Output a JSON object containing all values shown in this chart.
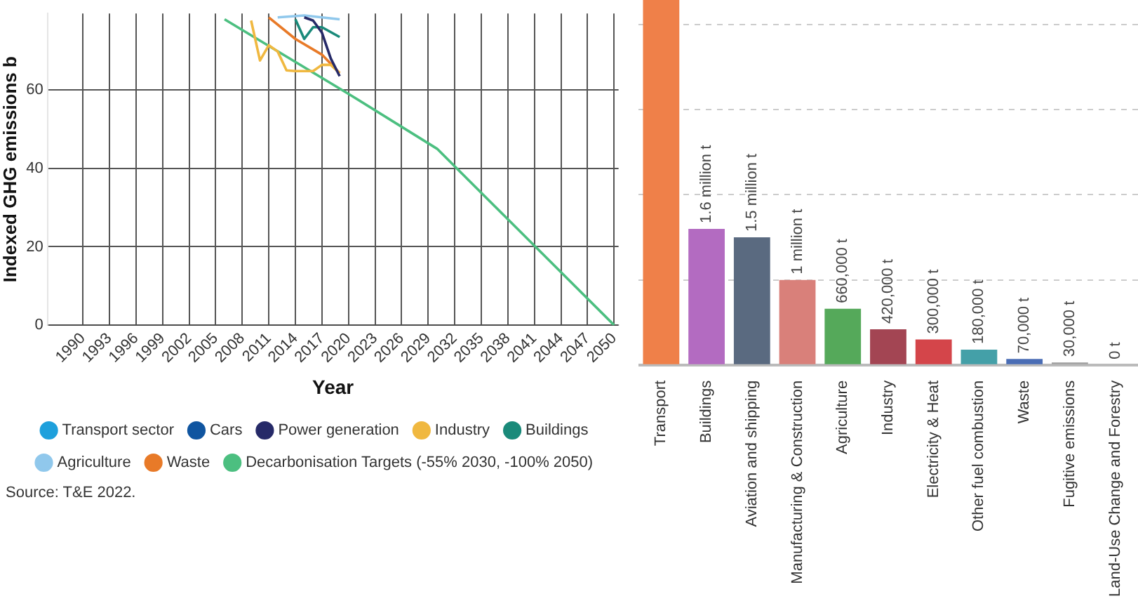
{
  "chart_data": [
    {
      "type": "line",
      "xlabel": "Year",
      "ylabel": "Indexed GHG emissions b",
      "xlim": [
        1986,
        2050.5
      ],
      "ylim": [
        0,
        79.5
      ],
      "xticks": [
        1990,
        1993,
        1996,
        1999,
        2002,
        2005,
        2008,
        2011,
        2014,
        2017,
        2020,
        2023,
        2026,
        2029,
        2032,
        2035,
        2038,
        2041,
        2044,
        2047,
        2050
      ],
      "yticks": [
        0,
        20,
        40,
        60
      ],
      "grid": true,
      "legend": "bottom",
      "marker": "none",
      "annotations": [
        "Source: T&E 2022."
      ],
      "series": [
        {
          "name": "Transport sector",
          "color": "#1ea0dc"
        },
        {
          "name": "Cars",
          "color": "#1055a0"
        },
        {
          "name": "Power generation",
          "color": "#262a68",
          "x": [
            2015,
            2016,
            2017,
            2018,
            2019
          ],
          "values": [
            78.5,
            77.7,
            74.6,
            68,
            63.5
          ]
        },
        {
          "name": "Industry",
          "color": "#f0b840",
          "x": [
            2009,
            2010,
            2011,
            2012,
            2013,
            2014,
            2016,
            2017,
            2018,
            2019
          ],
          "values": [
            77.7,
            67.5,
            71.4,
            69.8,
            65,
            64.8,
            64.8,
            66.4,
            66.4,
            64.3
          ]
        },
        {
          "name": "Buildings",
          "color": "#1a8a7a",
          "x": [
            2014,
            2015,
            2016,
            2017,
            2019
          ],
          "values": [
            78,
            73,
            76,
            76,
            73.5
          ]
        },
        {
          "name": "Agriculture",
          "color": "#90c8ec",
          "x": [
            2012,
            2015,
            2019
          ],
          "values": [
            78.5,
            79,
            78
          ]
        },
        {
          "name": "Waste",
          "color": "#e87a28",
          "x": [
            2011,
            2014,
            2017,
            2019
          ],
          "values": [
            78.5,
            73,
            69,
            64.3
          ]
        },
        {
          "name": "Decarbonisation Targets (-55% 2030, -100% 2050)",
          "color": "#4cbf80",
          "x": [
            2006,
            2020,
            2030,
            2050
          ],
          "values": [
            78,
            59,
            45,
            0
          ]
        }
      ]
    },
    {
      "type": "bar",
      "categories": [
        "Transport",
        "Buildings",
        "Aviation and shipping",
        "Manufacturing & Construction",
        "Agriculture",
        "Industry",
        "Electricity & Heat",
        "Other fuel combustion",
        "Waste",
        "Fugitive emissions",
        "Land-Use Change and Forestry"
      ],
      "values": [
        4290000,
        1600000,
        1500000,
        1000000,
        660000,
        420000,
        300000,
        180000,
        70000,
        30000,
        0
      ],
      "colors": [
        "#ef8049",
        "#b36bc1",
        "#5a6a80",
        "#d9807a",
        "#55a95a",
        "#a34553",
        "#d4454a",
        "#44a0a8",
        "#4a6db5",
        "#a0a0a0",
        "#999999"
      ],
      "value_labels": [
        null,
        "1.6 million t",
        "1.5 million t",
        "1 million t",
        "660,000 t",
        "420,000 t",
        "300,000 t",
        "180,000 t",
        "70,000 t",
        "30,000 t",
        "0 t"
      ],
      "ylim": [
        0,
        4290000
      ],
      "yticks": [
        {
          "value": 0,
          "label": null
        },
        {
          "value": 1000000,
          "label": null
        },
        {
          "value": 2000000,
          "label": null
        },
        {
          "value": 3000000,
          "label": null
        },
        {
          "value": 4000000,
          "label": null
        }
      ],
      "grid": "y",
      "tick_labels": "x",
      "legend": false
    }
  ]
}
